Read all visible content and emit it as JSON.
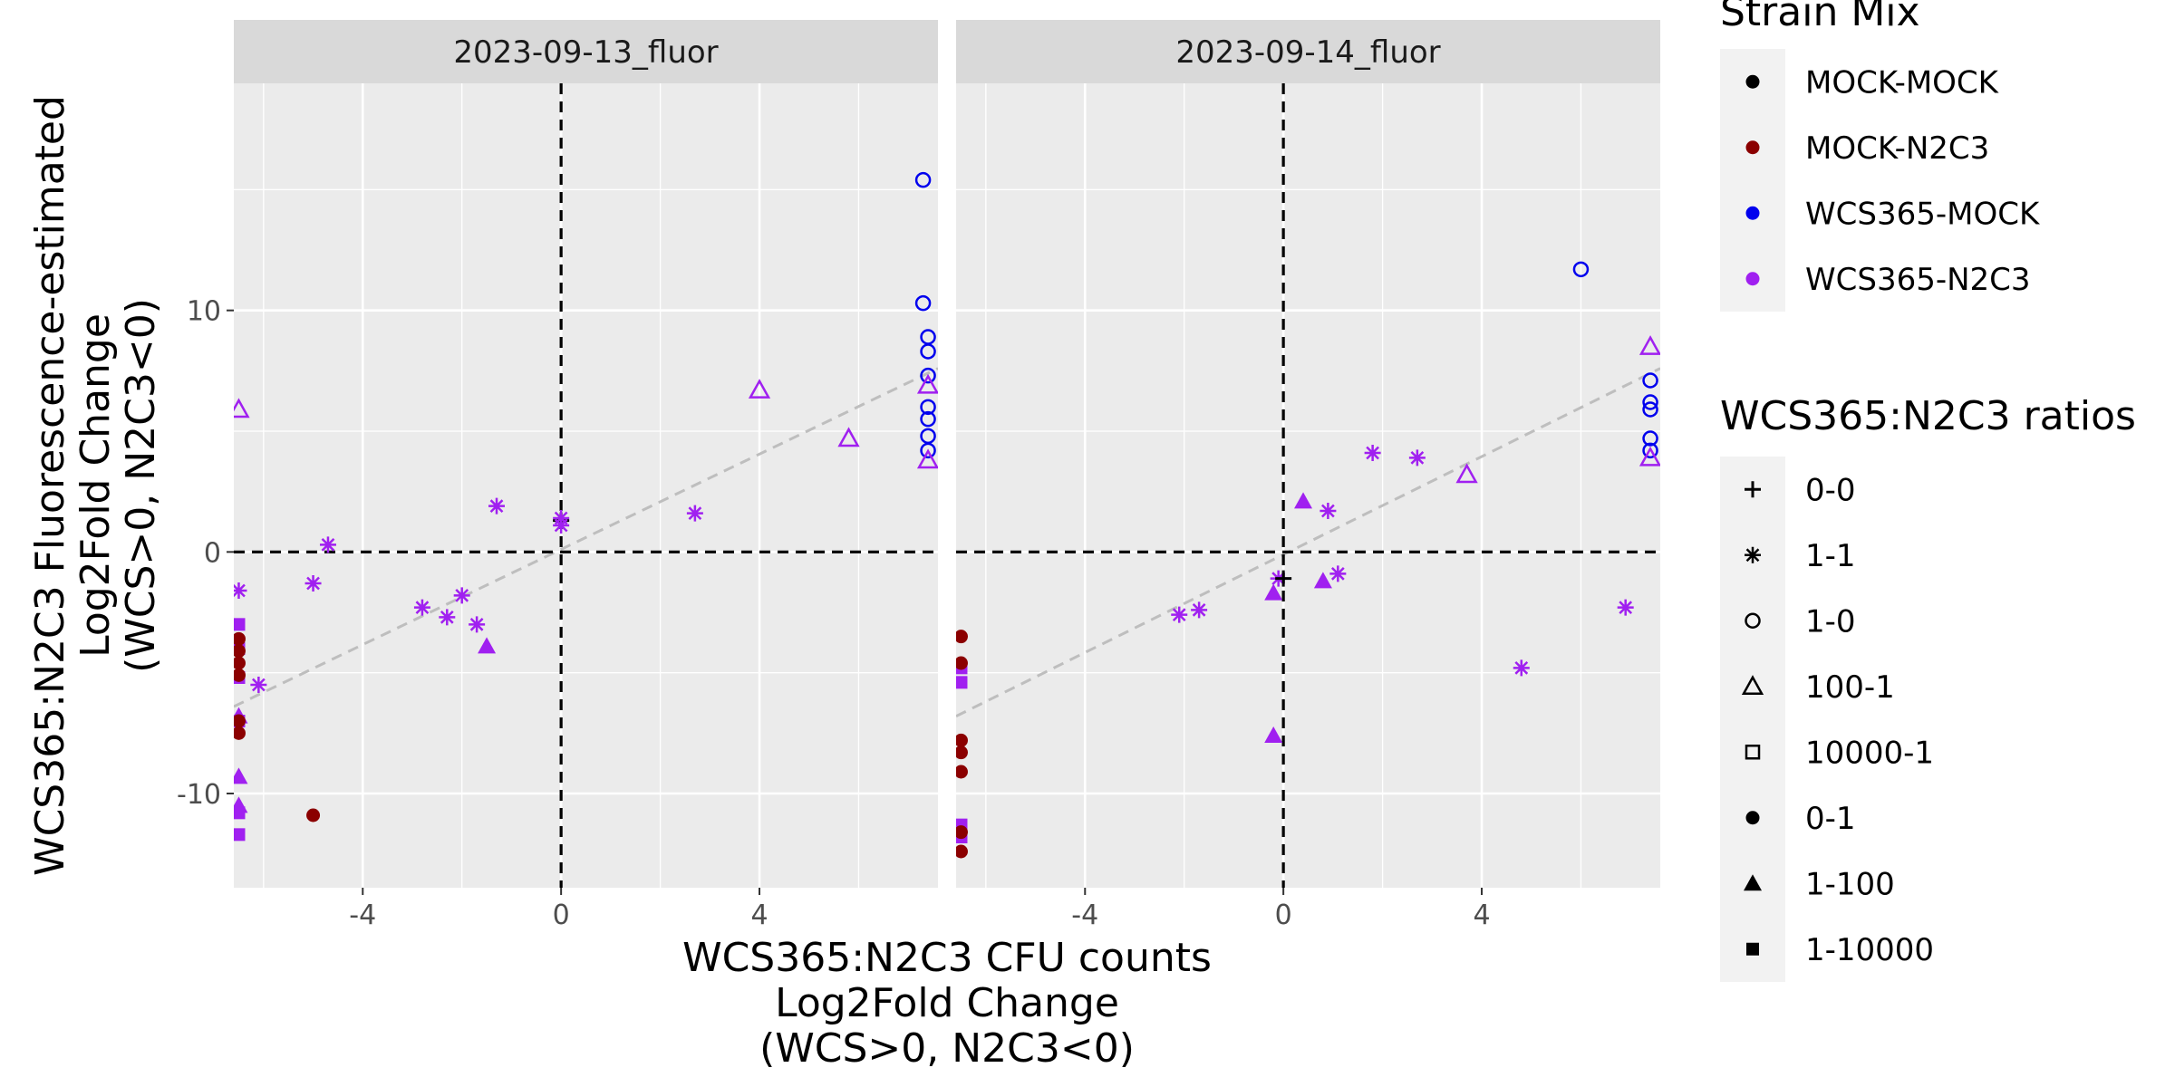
{
  "chart_data": {
    "type": "scatter",
    "x_axis": {
      "label_lines": [
        "WCS365:N2C3 CFU counts",
        "Log2Fold Change",
        "(WCS>0, N2C3<0)"
      ],
      "range": [
        -6.6,
        7.6
      ],
      "ticks": [
        -4,
        0,
        4
      ],
      "tick_labels": [
        "-4",
        "0",
        "4"
      ]
    },
    "y_axis": {
      "label_lines": [
        "WCS365:N2C3 Fluorescence-estimated",
        "Log2Fold Change",
        "(WCS>0, N2C3<0)"
      ],
      "range": [
        -13.9,
        19.4
      ],
      "ticks": [
        -10,
        0,
        10
      ],
      "tick_labels": [
        "-10",
        "0",
        "10"
      ]
    },
    "grid": true,
    "reference_lines": {
      "x": 0,
      "y": 0,
      "style": "dashed"
    },
    "legend_position": "right",
    "legends": [
      {
        "title": "Strain Mix",
        "entries": [
          {
            "label": "MOCK-MOCK",
            "color": "#000000",
            "shape": "circle-filled"
          },
          {
            "label": "MOCK-N2C3",
            "color": "#8b0000",
            "shape": "circle-filled"
          },
          {
            "label": "WCS365-MOCK",
            "color": "#0000ee",
            "shape": "circle-filled"
          },
          {
            "label": "WCS365-N2C3",
            "color": "#a020f0",
            "shape": "circle-filled"
          }
        ]
      },
      {
        "title": "WCS365:N2C3 ratios",
        "entries": [
          {
            "label": "0-0",
            "shape": "plus"
          },
          {
            "label": "1-1",
            "shape": "asterisk"
          },
          {
            "label": "1-0",
            "shape": "circle-open"
          },
          {
            "label": "100-1",
            "shape": "triangle-open"
          },
          {
            "label": "10000-1",
            "shape": "square-open"
          },
          {
            "label": "0-1",
            "shape": "circle-filled"
          },
          {
            "label": "1-100",
            "shape": "triangle-filled"
          },
          {
            "label": "1-10000",
            "shape": "square-filled"
          }
        ]
      }
    ],
    "panels": [
      {
        "title": "2023-09-13_fluor",
        "trend_line": {
          "x": [
            -6.6,
            7.6
          ],
          "y": [
            -6.4,
            7.6
          ]
        },
        "points": [
          {
            "x": 7.3,
            "y": 15.4,
            "mix": "WCS365-MOCK",
            "ratio": "1-0"
          },
          {
            "x": 7.3,
            "y": 10.3,
            "mix": "WCS365-MOCK",
            "ratio": "1-0"
          },
          {
            "x": 7.4,
            "y": 8.9,
            "mix": "WCS365-MOCK",
            "ratio": "1-0"
          },
          {
            "x": 7.4,
            "y": 8.3,
            "mix": "WCS365-MOCK",
            "ratio": "1-0"
          },
          {
            "x": 7.4,
            "y": 7.3,
            "mix": "WCS365-MOCK",
            "ratio": "1-0"
          },
          {
            "x": 7.4,
            "y": 6.0,
            "mix": "WCS365-MOCK",
            "ratio": "1-0"
          },
          {
            "x": 7.4,
            "y": 5.5,
            "mix": "WCS365-MOCK",
            "ratio": "1-0"
          },
          {
            "x": 7.4,
            "y": 4.8,
            "mix": "WCS365-MOCK",
            "ratio": "1-0"
          },
          {
            "x": 7.4,
            "y": 4.2,
            "mix": "WCS365-MOCK",
            "ratio": "1-0"
          },
          {
            "x": 7.4,
            "y": 6.9,
            "mix": "WCS365-N2C3",
            "ratio": "100-1"
          },
          {
            "x": 7.4,
            "y": 3.8,
            "mix": "WCS365-N2C3",
            "ratio": "100-1"
          },
          {
            "x": 4.0,
            "y": 6.7,
            "mix": "WCS365-N2C3",
            "ratio": "100-1"
          },
          {
            "x": 5.8,
            "y": 4.7,
            "mix": "WCS365-N2C3",
            "ratio": "100-1"
          },
          {
            "x": -6.5,
            "y": 5.9,
            "mix": "WCS365-N2C3",
            "ratio": "100-1"
          },
          {
            "x": 0.0,
            "y": 1.3,
            "mix": "MOCK-MOCK",
            "ratio": "0-0"
          },
          {
            "x": 0.0,
            "y": 1.4,
            "mix": "WCS365-N2C3",
            "ratio": "1-1"
          },
          {
            "x": 0.0,
            "y": 1.1,
            "mix": "WCS365-N2C3",
            "ratio": "1-1"
          },
          {
            "x": -1.3,
            "y": 1.9,
            "mix": "WCS365-N2C3",
            "ratio": "1-1"
          },
          {
            "x": 2.7,
            "y": 1.6,
            "mix": "WCS365-N2C3",
            "ratio": "1-1"
          },
          {
            "x": -4.7,
            "y": 0.3,
            "mix": "WCS365-N2C3",
            "ratio": "1-1"
          },
          {
            "x": -5.0,
            "y": -1.3,
            "mix": "WCS365-N2C3",
            "ratio": "1-1"
          },
          {
            "x": -6.5,
            "y": -1.6,
            "mix": "WCS365-N2C3",
            "ratio": "1-1"
          },
          {
            "x": -2.0,
            "y": -1.8,
            "mix": "WCS365-N2C3",
            "ratio": "1-1"
          },
          {
            "x": -2.8,
            "y": -2.3,
            "mix": "WCS365-N2C3",
            "ratio": "1-1"
          },
          {
            "x": -2.3,
            "y": -2.7,
            "mix": "WCS365-N2C3",
            "ratio": "1-1"
          },
          {
            "x": -1.7,
            "y": -3.0,
            "mix": "WCS365-N2C3",
            "ratio": "1-1"
          },
          {
            "x": -6.1,
            "y": -5.5,
            "mix": "WCS365-N2C3",
            "ratio": "1-1"
          },
          {
            "x": -1.5,
            "y": -3.9,
            "mix": "WCS365-N2C3",
            "ratio": "1-100"
          },
          {
            "x": -6.5,
            "y": -6.8,
            "mix": "WCS365-N2C3",
            "ratio": "1-100"
          },
          {
            "x": -6.5,
            "y": -9.3,
            "mix": "WCS365-N2C3",
            "ratio": "1-100"
          },
          {
            "x": -6.5,
            "y": -10.5,
            "mix": "WCS365-N2C3",
            "ratio": "1-100"
          },
          {
            "x": -6.5,
            "y": -3.0,
            "mix": "WCS365-N2C3",
            "ratio": "1-10000"
          },
          {
            "x": -6.5,
            "y": -4.0,
            "mix": "WCS365-N2C3",
            "ratio": "1-10000"
          },
          {
            "x": -6.5,
            "y": -5.2,
            "mix": "WCS365-N2C3",
            "ratio": "1-10000"
          },
          {
            "x": -6.5,
            "y": -7.0,
            "mix": "WCS365-N2C3",
            "ratio": "1-10000"
          },
          {
            "x": -6.5,
            "y": -10.8,
            "mix": "WCS365-N2C3",
            "ratio": "1-10000"
          },
          {
            "x": -6.5,
            "y": -11.7,
            "mix": "WCS365-N2C3",
            "ratio": "1-10000"
          },
          {
            "x": -6.5,
            "y": -3.6,
            "mix": "MOCK-N2C3",
            "ratio": "0-1"
          },
          {
            "x": -6.5,
            "y": -4.1,
            "mix": "MOCK-N2C3",
            "ratio": "0-1"
          },
          {
            "x": -6.5,
            "y": -4.6,
            "mix": "MOCK-N2C3",
            "ratio": "0-1"
          },
          {
            "x": -6.5,
            "y": -5.1,
            "mix": "MOCK-N2C3",
            "ratio": "0-1"
          },
          {
            "x": -6.5,
            "y": -7.0,
            "mix": "MOCK-N2C3",
            "ratio": "0-1"
          },
          {
            "x": -6.5,
            "y": -7.5,
            "mix": "MOCK-N2C3",
            "ratio": "0-1"
          },
          {
            "x": -5.0,
            "y": -10.9,
            "mix": "MOCK-N2C3",
            "ratio": "0-1"
          }
        ]
      },
      {
        "title": "2023-09-14_fluor",
        "trend_line": {
          "x": [
            -6.6,
            7.6
          ],
          "y": [
            -6.8,
            7.6
          ]
        },
        "points": [
          {
            "x": 6.0,
            "y": 11.7,
            "mix": "WCS365-MOCK",
            "ratio": "1-0"
          },
          {
            "x": 7.4,
            "y": 7.1,
            "mix": "WCS365-MOCK",
            "ratio": "1-0"
          },
          {
            "x": 7.4,
            "y": 6.2,
            "mix": "WCS365-MOCK",
            "ratio": "1-0"
          },
          {
            "x": 7.4,
            "y": 5.9,
            "mix": "WCS365-MOCK",
            "ratio": "1-0"
          },
          {
            "x": 7.4,
            "y": 4.7,
            "mix": "WCS365-MOCK",
            "ratio": "1-0"
          },
          {
            "x": 7.4,
            "y": 4.2,
            "mix": "WCS365-MOCK",
            "ratio": "1-0"
          },
          {
            "x": 7.4,
            "y": 8.5,
            "mix": "WCS365-N2C3",
            "ratio": "100-1"
          },
          {
            "x": 7.4,
            "y": 3.9,
            "mix": "WCS365-N2C3",
            "ratio": "100-1"
          },
          {
            "x": 3.7,
            "y": 3.2,
            "mix": "WCS365-N2C3",
            "ratio": "100-1"
          },
          {
            "x": 1.8,
            "y": 4.1,
            "mix": "WCS365-N2C3",
            "ratio": "1-1"
          },
          {
            "x": 2.7,
            "y": 3.9,
            "mix": "WCS365-N2C3",
            "ratio": "1-1"
          },
          {
            "x": 0.9,
            "y": 1.7,
            "mix": "WCS365-N2C3",
            "ratio": "1-1"
          },
          {
            "x": 1.1,
            "y": -0.9,
            "mix": "WCS365-N2C3",
            "ratio": "1-1"
          },
          {
            "x": -0.1,
            "y": -1.1,
            "mix": "WCS365-N2C3",
            "ratio": "1-1"
          },
          {
            "x": -2.1,
            "y": -2.6,
            "mix": "WCS365-N2C3",
            "ratio": "1-1"
          },
          {
            "x": -1.7,
            "y": -2.4,
            "mix": "WCS365-N2C3",
            "ratio": "1-1"
          },
          {
            "x": 4.8,
            "y": -4.8,
            "mix": "WCS365-N2C3",
            "ratio": "1-1"
          },
          {
            "x": 6.9,
            "y": -2.3,
            "mix": "WCS365-N2C3",
            "ratio": "1-1"
          },
          {
            "x": 0.0,
            "y": -1.1,
            "mix": "MOCK-MOCK",
            "ratio": "0-0"
          },
          {
            "x": 0.4,
            "y": 2.1,
            "mix": "WCS365-N2C3",
            "ratio": "1-100"
          },
          {
            "x": -0.2,
            "y": -1.7,
            "mix": "WCS365-N2C3",
            "ratio": "1-100"
          },
          {
            "x": 0.8,
            "y": -1.2,
            "mix": "WCS365-N2C3",
            "ratio": "1-100"
          },
          {
            "x": -0.2,
            "y": -7.6,
            "mix": "WCS365-N2C3",
            "ratio": "1-100"
          },
          {
            "x": -6.5,
            "y": -4.8,
            "mix": "WCS365-N2C3",
            "ratio": "1-10000"
          },
          {
            "x": -6.5,
            "y": -5.4,
            "mix": "WCS365-N2C3",
            "ratio": "1-10000"
          },
          {
            "x": -6.5,
            "y": -11.3,
            "mix": "WCS365-N2C3",
            "ratio": "1-10000"
          },
          {
            "x": -6.5,
            "y": -11.8,
            "mix": "WCS365-N2C3",
            "ratio": "1-10000"
          },
          {
            "x": -6.5,
            "y": -3.5,
            "mix": "MOCK-N2C3",
            "ratio": "0-1"
          },
          {
            "x": -6.5,
            "y": -4.6,
            "mix": "MOCK-N2C3",
            "ratio": "0-1"
          },
          {
            "x": -6.5,
            "y": -7.8,
            "mix": "MOCK-N2C3",
            "ratio": "0-1"
          },
          {
            "x": -6.5,
            "y": -8.3,
            "mix": "MOCK-N2C3",
            "ratio": "0-1"
          },
          {
            "x": -6.5,
            "y": -9.1,
            "mix": "MOCK-N2C3",
            "ratio": "0-1"
          },
          {
            "x": -6.5,
            "y": -11.6,
            "mix": "MOCK-N2C3",
            "ratio": "0-1"
          },
          {
            "x": -6.5,
            "y": -12.4,
            "mix": "MOCK-N2C3",
            "ratio": "0-1"
          }
        ]
      }
    ]
  }
}
